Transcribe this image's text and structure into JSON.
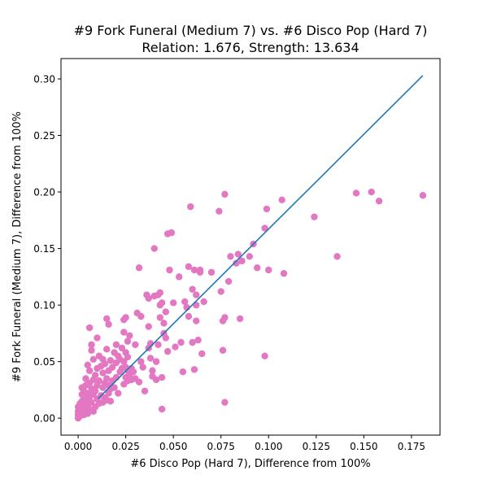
{
  "chart_data": {
    "type": "scatter",
    "title_line1": "#9 Fork Funeral (Medium 7) vs. #6 Disco Pop (Hard 7)",
    "title_line2": "Relation: 1.676, Strength: 13.634",
    "xlabel": "#6 Disco Pop (Hard 7), Difference from 100%",
    "ylabel": "#9 Fork Funeral (Medium 7), Difference from 100%",
    "xlim": [
      -0.009,
      0.19
    ],
    "ylim": [
      -0.015,
      0.318
    ],
    "x_ticks": [
      {
        "value": 0.0,
        "label": "0.000"
      },
      {
        "value": 0.025,
        "label": "0.025"
      },
      {
        "value": 0.05,
        "label": "0.050"
      },
      {
        "value": 0.075,
        "label": "0.075"
      },
      {
        "value": 0.1,
        "label": "0.100"
      },
      {
        "value": 0.125,
        "label": "0.125"
      },
      {
        "value": 0.15,
        "label": "0.150"
      },
      {
        "value": 0.175,
        "label": "0.175"
      }
    ],
    "y_ticks": [
      {
        "value": 0.0,
        "label": "0.00"
      },
      {
        "value": 0.05,
        "label": "0.05"
      },
      {
        "value": 0.1,
        "label": "0.10"
      },
      {
        "value": 0.15,
        "label": "0.15"
      },
      {
        "value": 0.2,
        "label": "0.20"
      },
      {
        "value": 0.25,
        "label": "0.25"
      },
      {
        "value": 0.3,
        "label": "0.30"
      }
    ],
    "grid": false,
    "point_color": "#e377c2",
    "line_color": "#1f77b4",
    "fit_line": {
      "x": [
        0.0105,
        0.181
      ],
      "y": [
        0.0173,
        0.303
      ]
    },
    "points": [
      [
        0.0,
        0.0
      ],
      [
        0.0,
        0.003
      ],
      [
        0.0,
        0.006
      ],
      [
        0.0,
        0.01
      ],
      [
        0.001,
        0.002
      ],
      [
        0.001,
        0.005
      ],
      [
        0.001,
        0.009
      ],
      [
        0.001,
        0.013
      ],
      [
        0.002,
        0.004
      ],
      [
        0.002,
        0.008
      ],
      [
        0.002,
        0.015
      ],
      [
        0.002,
        0.021
      ],
      [
        0.002,
        0.027
      ],
      [
        0.003,
        0.003
      ],
      [
        0.003,
        0.012
      ],
      [
        0.003,
        0.018
      ],
      [
        0.003,
        0.024
      ],
      [
        0.004,
        0.006
      ],
      [
        0.004,
        0.016
      ],
      [
        0.004,
        0.029
      ],
      [
        0.004,
        0.035
      ],
      [
        0.005,
        0.004
      ],
      [
        0.005,
        0.011
      ],
      [
        0.005,
        0.022
      ],
      [
        0.005,
        0.047
      ],
      [
        0.006,
        0.008
      ],
      [
        0.006,
        0.019
      ],
      [
        0.006,
        0.031
      ],
      [
        0.006,
        0.042
      ],
      [
        0.006,
        0.08
      ],
      [
        0.007,
        0.014
      ],
      [
        0.007,
        0.026
      ],
      [
        0.007,
        0.06
      ],
      [
        0.007,
        0.065
      ],
      [
        0.008,
        0.006
      ],
      [
        0.008,
        0.021
      ],
      [
        0.008,
        0.034
      ],
      [
        0.008,
        0.052
      ],
      [
        0.009,
        0.01
      ],
      [
        0.009,
        0.024
      ],
      [
        0.009,
        0.038
      ],
      [
        0.01,
        0.017
      ],
      [
        0.01,
        0.029
      ],
      [
        0.01,
        0.044
      ],
      [
        0.01,
        0.071
      ],
      [
        0.011,
        0.013
      ],
      [
        0.011,
        0.033
      ],
      [
        0.011,
        0.055
      ],
      [
        0.012,
        0.02
      ],
      [
        0.012,
        0.046
      ],
      [
        0.013,
        0.014
      ],
      [
        0.013,
        0.027
      ],
      [
        0.013,
        0.04
      ],
      [
        0.013,
        0.052
      ],
      [
        0.014,
        0.018
      ],
      [
        0.014,
        0.031
      ],
      [
        0.014,
        0.048
      ],
      [
        0.015,
        0.016
      ],
      [
        0.015,
        0.035
      ],
      [
        0.015,
        0.061
      ],
      [
        0.015,
        0.088
      ],
      [
        0.016,
        0.022
      ],
      [
        0.016,
        0.029
      ],
      [
        0.016,
        0.042
      ],
      [
        0.016,
        0.083
      ],
      [
        0.017,
        0.015
      ],
      [
        0.017,
        0.026
      ],
      [
        0.017,
        0.051
      ],
      [
        0.018,
        0.033
      ],
      [
        0.018,
        0.045
      ],
      [
        0.019,
        0.027
      ],
      [
        0.019,
        0.058
      ],
      [
        0.02,
        0.036
      ],
      [
        0.02,
        0.049
      ],
      [
        0.02,
        0.065
      ],
      [
        0.021,
        0.022
      ],
      [
        0.021,
        0.055
      ],
      [
        0.022,
        0.041
      ],
      [
        0.022,
        0.052
      ],
      [
        0.023,
        0.044
      ],
      [
        0.023,
        0.062
      ],
      [
        0.024,
        0.03
      ],
      [
        0.024,
        0.05
      ],
      [
        0.024,
        0.076
      ],
      [
        0.024,
        0.087
      ],
      [
        0.025,
        0.036
      ],
      [
        0.025,
        0.045
      ],
      [
        0.025,
        0.058
      ],
      [
        0.025,
        0.089
      ],
      [
        0.026,
        0.033
      ],
      [
        0.026,
        0.042
      ],
      [
        0.026,
        0.054
      ],
      [
        0.026,
        0.068
      ],
      [
        0.027,
        0.038
      ],
      [
        0.027,
        0.073
      ],
      [
        0.028,
        0.034
      ],
      [
        0.028,
        0.044
      ],
      [
        0.029,
        0.041
      ],
      [
        0.03,
        0.035
      ],
      [
        0.03,
        0.065
      ],
      [
        0.031,
        0.093
      ],
      [
        0.032,
        0.032
      ],
      [
        0.032,
        0.133
      ],
      [
        0.033,
        0.05
      ],
      [
        0.033,
        0.09
      ],
      [
        0.034,
        0.045
      ],
      [
        0.035,
        0.024
      ],
      [
        0.036,
        0.109
      ],
      [
        0.037,
        0.062
      ],
      [
        0.037,
        0.081
      ],
      [
        0.037,
        0.106
      ],
      [
        0.038,
        0.053
      ],
      [
        0.038,
        0.066
      ],
      [
        0.039,
        0.037
      ],
      [
        0.039,
        0.042
      ],
      [
        0.04,
        0.108
      ],
      [
        0.04,
        0.15
      ],
      [
        0.041,
        0.034
      ],
      [
        0.041,
        0.05
      ],
      [
        0.042,
        0.065
      ],
      [
        0.042,
        0.109
      ],
      [
        0.043,
        0.089
      ],
      [
        0.043,
        0.1
      ],
      [
        0.043,
        0.111
      ],
      [
        0.044,
        0.008
      ],
      [
        0.044,
        0.036
      ],
      [
        0.044,
        0.102
      ],
      [
        0.045,
        0.075
      ],
      [
        0.045,
        0.084
      ],
      [
        0.046,
        0.071
      ],
      [
        0.046,
        0.094
      ],
      [
        0.047,
        0.059
      ],
      [
        0.047,
        0.163
      ],
      [
        0.048,
        0.131
      ],
      [
        0.049,
        0.164
      ],
      [
        0.05,
        0.102
      ],
      [
        0.051,
        0.063
      ],
      [
        0.053,
        0.125
      ],
      [
        0.054,
        0.067
      ],
      [
        0.055,
        0.041
      ],
      [
        0.056,
        0.103
      ],
      [
        0.057,
        0.098
      ],
      [
        0.058,
        0.134
      ],
      [
        0.058,
        0.09
      ],
      [
        0.059,
        0.187
      ],
      [
        0.06,
        0.067
      ],
      [
        0.06,
        0.114
      ],
      [
        0.061,
        0.131
      ],
      [
        0.061,
        0.043
      ],
      [
        0.062,
        0.1
      ],
      [
        0.062,
        0.109
      ],
      [
        0.062,
        0.086
      ],
      [
        0.063,
        0.069
      ],
      [
        0.064,
        0.131
      ],
      [
        0.064,
        0.129
      ],
      [
        0.065,
        0.057
      ],
      [
        0.066,
        0.103
      ],
      [
        0.07,
        0.129
      ],
      [
        0.074,
        0.183
      ],
      [
        0.075,
        0.112
      ],
      [
        0.076,
        0.086
      ],
      [
        0.076,
        0.06
      ],
      [
        0.077,
        0.198
      ],
      [
        0.077,
        0.089
      ],
      [
        0.077,
        0.014
      ],
      [
        0.079,
        0.121
      ],
      [
        0.08,
        0.143
      ],
      [
        0.083,
        0.137
      ],
      [
        0.084,
        0.145
      ],
      [
        0.085,
        0.088
      ],
      [
        0.086,
        0.139
      ],
      [
        0.09,
        0.143
      ],
      [
        0.092,
        0.154
      ],
      [
        0.094,
        0.133
      ],
      [
        0.098,
        0.055
      ],
      [
        0.098,
        0.168
      ],
      [
        0.099,
        0.185
      ],
      [
        0.1,
        0.131
      ],
      [
        0.107,
        0.193
      ],
      [
        0.108,
        0.128
      ],
      [
        0.124,
        0.178
      ],
      [
        0.136,
        0.143
      ],
      [
        0.146,
        0.199
      ],
      [
        0.154,
        0.2
      ],
      [
        0.158,
        0.192
      ],
      [
        0.181,
        0.197
      ]
    ]
  }
}
